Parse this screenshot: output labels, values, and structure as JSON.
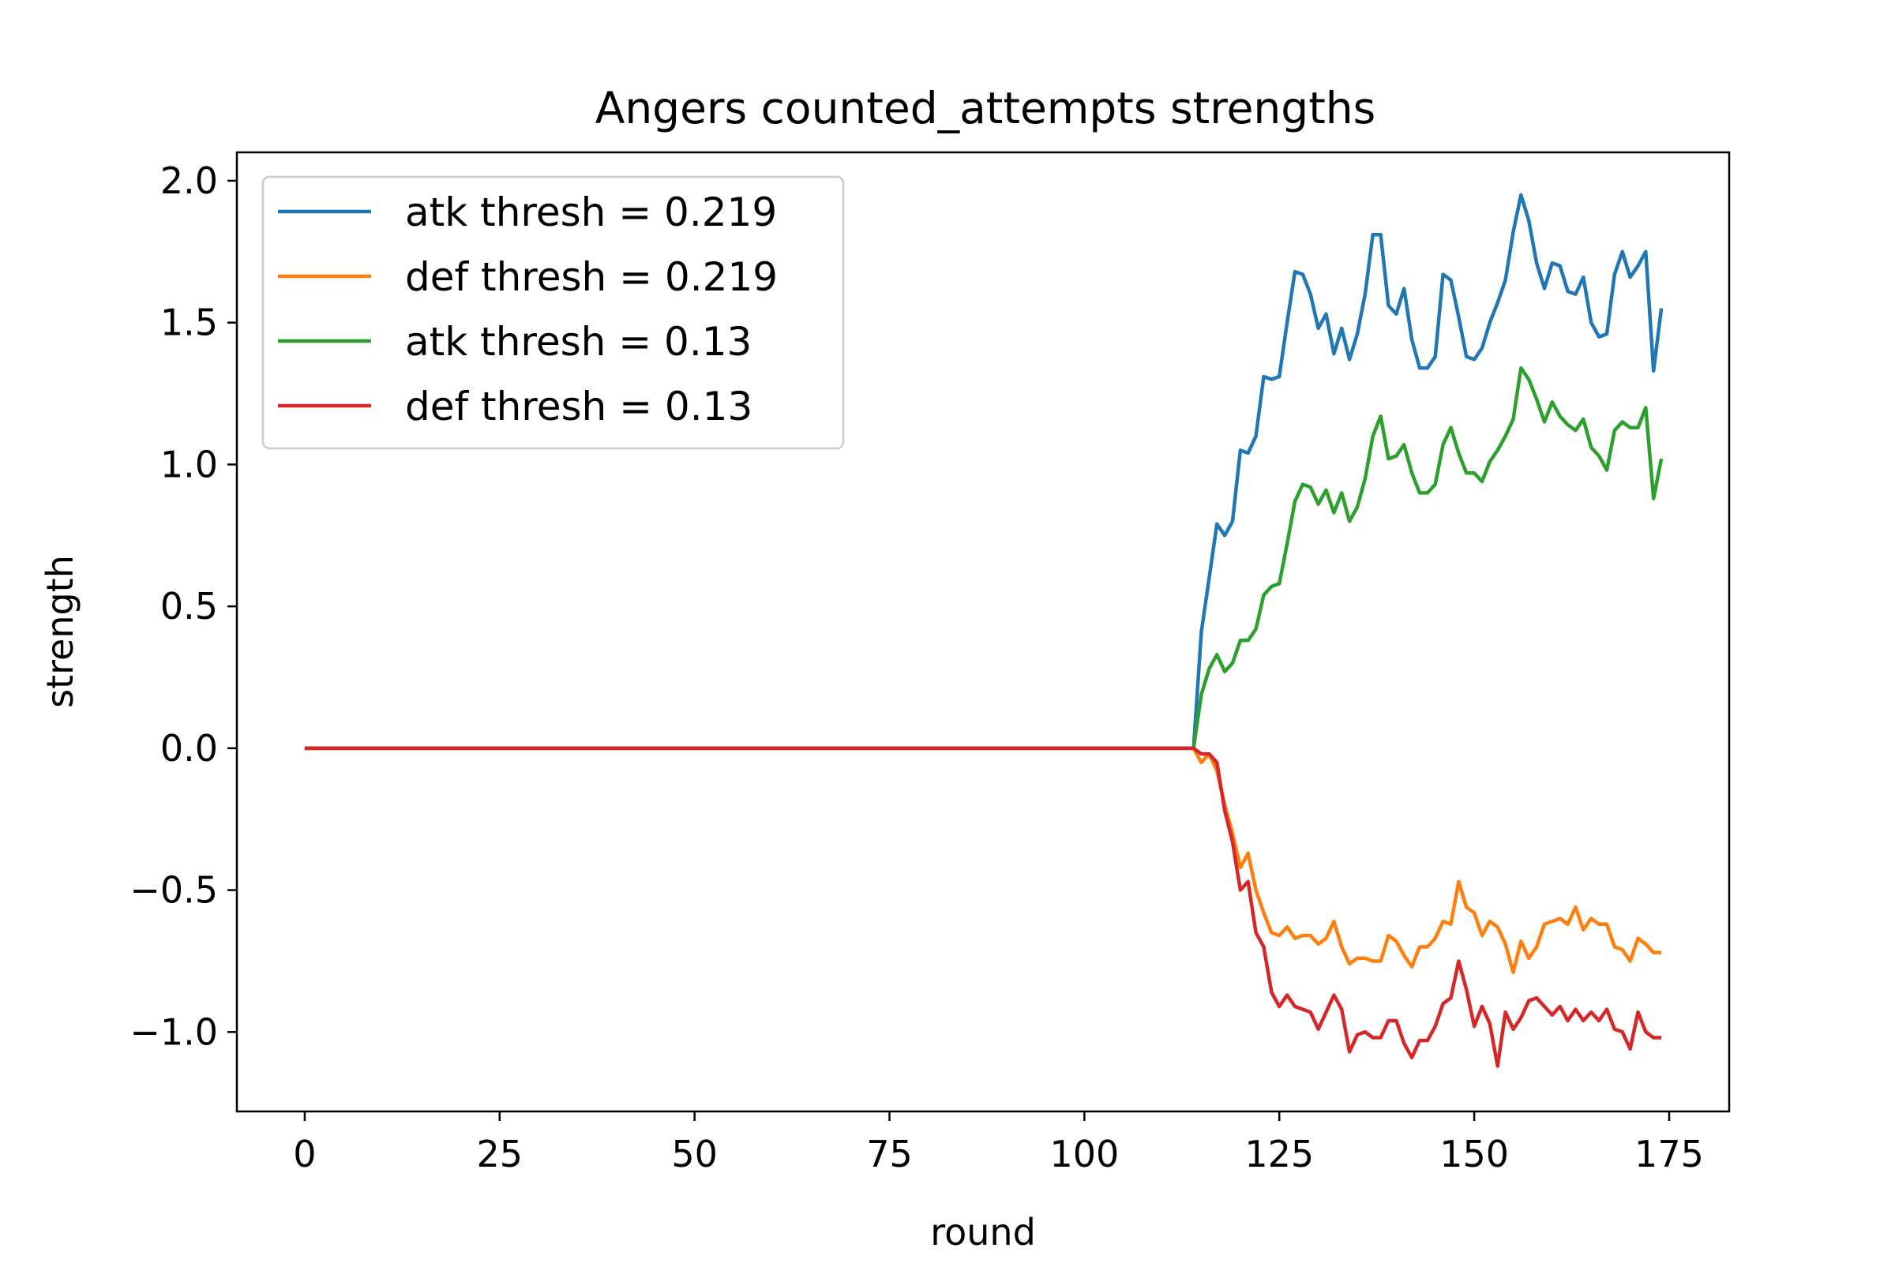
{
  "chart_data": {
    "type": "line",
    "title": "Angers counted_attempts strengths",
    "xlabel": "round",
    "ylabel": "strength",
    "xlim": [
      -8.7,
      182.7
    ],
    "ylim": [
      -1.28,
      2.1
    ],
    "xticks": [
      0,
      25,
      50,
      75,
      100,
      125,
      150,
      175
    ],
    "yticks": [
      2.0,
      1.5,
      1.0,
      0.5,
      0.0,
      -0.5,
      -1.0
    ],
    "ytick_labels": [
      "2.0",
      "1.5",
      "1.0",
      "0.5",
      "0.0",
      "−0.5",
      "−1.0"
    ],
    "grid": false,
    "legend_position": "upper left",
    "colors": [
      "#1f77b4",
      "#ff7f0e",
      "#2ca02c",
      "#d62728"
    ],
    "flat_segment": {
      "x_start": 0,
      "x_end": 114,
      "value": 0.0
    },
    "x_active": [
      114,
      115,
      116,
      117,
      118,
      119,
      120,
      121,
      122,
      123,
      124,
      125,
      126,
      127,
      128,
      129,
      130,
      131,
      132,
      133,
      134,
      135,
      136,
      137,
      138,
      139,
      140,
      141,
      142,
      143,
      144,
      145,
      146,
      147,
      148,
      149,
      150,
      151,
      152,
      153,
      154,
      155,
      156,
      157,
      158,
      159,
      160,
      161,
      162,
      163,
      164,
      165,
      166,
      167,
      168,
      169,
      170,
      171,
      172,
      173,
      174
    ],
    "series": [
      {
        "name": "atk thresh = 0.219",
        "values": [
          0.0,
          0.41,
          0.6,
          0.79,
          0.75,
          0.8,
          1.05,
          1.04,
          1.1,
          1.31,
          1.3,
          1.31,
          1.5,
          1.68,
          1.67,
          1.6,
          1.48,
          1.53,
          1.39,
          1.48,
          1.37,
          1.46,
          1.6,
          1.81,
          1.81,
          1.56,
          1.53,
          1.62,
          1.44,
          1.34,
          1.34,
          1.38,
          1.67,
          1.65,
          1.52,
          1.38,
          1.37,
          1.41,
          1.5,
          1.57,
          1.65,
          1.82,
          1.95,
          1.86,
          1.71,
          1.62,
          1.71,
          1.7,
          1.61,
          1.6,
          1.66,
          1.5,
          1.45,
          1.46,
          1.67,
          1.75,
          1.66,
          1.7,
          1.75,
          1.33,
          1.55
        ]
      },
      {
        "name": "def thresh = 0.219",
        "values": [
          0.0,
          -0.05,
          -0.02,
          -0.08,
          -0.2,
          -0.3,
          -0.42,
          -0.37,
          -0.5,
          -0.58,
          -0.65,
          -0.66,
          -0.63,
          -0.67,
          -0.66,
          -0.66,
          -0.69,
          -0.67,
          -0.61,
          -0.7,
          -0.76,
          -0.74,
          -0.74,
          -0.75,
          -0.75,
          -0.66,
          -0.68,
          -0.73,
          -0.77,
          -0.7,
          -0.7,
          -0.67,
          -0.61,
          -0.62,
          -0.47,
          -0.56,
          -0.58,
          -0.66,
          -0.61,
          -0.63,
          -0.69,
          -0.79,
          -0.68,
          -0.74,
          -0.7,
          -0.62,
          -0.61,
          -0.6,
          -0.62,
          -0.56,
          -0.64,
          -0.6,
          -0.62,
          -0.62,
          -0.7,
          -0.71,
          -0.75,
          -0.67,
          -0.69,
          -0.72,
          -0.72
        ]
      },
      {
        "name": "atk thresh = 0.13",
        "values": [
          0.0,
          0.19,
          0.28,
          0.33,
          0.27,
          0.3,
          0.38,
          0.38,
          0.42,
          0.54,
          0.57,
          0.58,
          0.72,
          0.87,
          0.93,
          0.92,
          0.86,
          0.91,
          0.83,
          0.9,
          0.8,
          0.85,
          0.95,
          1.1,
          1.17,
          1.02,
          1.03,
          1.07,
          0.97,
          0.9,
          0.9,
          0.93,
          1.07,
          1.13,
          1.04,
          0.97,
          0.97,
          0.94,
          1.01,
          1.05,
          1.1,
          1.16,
          1.34,
          1.3,
          1.23,
          1.15,
          1.22,
          1.17,
          1.14,
          1.12,
          1.16,
          1.06,
          1.03,
          0.98,
          1.12,
          1.15,
          1.13,
          1.13,
          1.2,
          0.88,
          1.02
        ]
      },
      {
        "name": "def thresh = 0.13",
        "values": [
          0.0,
          -0.02,
          -0.02,
          -0.05,
          -0.22,
          -0.33,
          -0.5,
          -0.47,
          -0.65,
          -0.7,
          -0.86,
          -0.91,
          -0.87,
          -0.91,
          -0.92,
          -0.93,
          -0.99,
          -0.93,
          -0.87,
          -0.92,
          -1.07,
          -1.01,
          -1.0,
          -1.02,
          -1.02,
          -0.96,
          -0.96,
          -1.04,
          -1.09,
          -1.03,
          -1.03,
          -0.98,
          -0.9,
          -0.88,
          -0.75,
          -0.85,
          -0.98,
          -0.91,
          -0.97,
          -1.12,
          -0.93,
          -0.99,
          -0.95,
          -0.89,
          -0.88,
          -0.91,
          -0.94,
          -0.91,
          -0.96,
          -0.92,
          -0.96,
          -0.93,
          -0.96,
          -0.92,
          -0.99,
          -1.0,
          -1.06,
          -0.93,
          -1.0,
          -1.02,
          -1.02
        ]
      }
    ]
  }
}
